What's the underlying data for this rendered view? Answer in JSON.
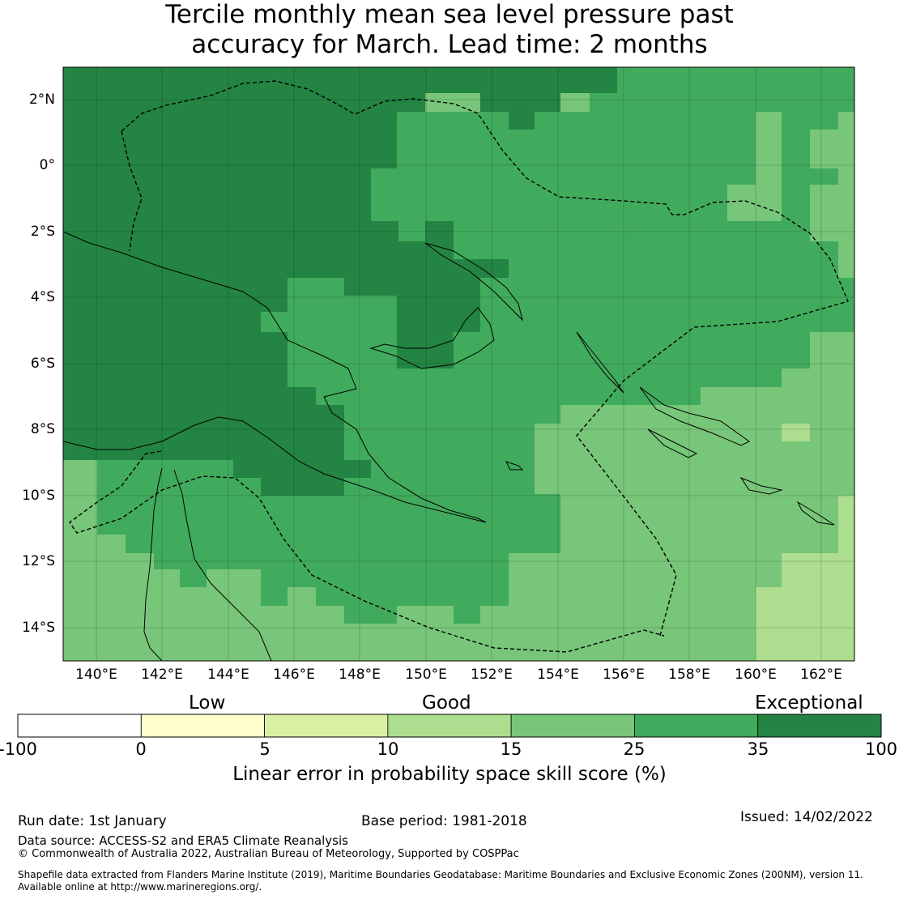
{
  "title": {
    "line1": "Tercile monthly mean sea level pressure past",
    "line2": "accuracy for March. Lead time: 2 months"
  },
  "map": {
    "lat_ticks": [
      "2°N",
      "0°",
      "2°S",
      "4°S",
      "6°S",
      "8°S",
      "10°S",
      "12°S",
      "14°S"
    ],
    "lon_ticks": [
      "140°E",
      "142°E",
      "144°E",
      "146°E",
      "148°E",
      "150°E",
      "152°E",
      "154°E",
      "156°E",
      "158°E",
      "160°E",
      "162°E"
    ],
    "extent": {
      "lon_min": 139.0,
      "lon_max": 163.0,
      "lat_min": -15.0,
      "lat_max": 3.0
    }
  },
  "colorbar": {
    "categories": [
      "Low",
      "Good",
      "Exceptional"
    ],
    "ticks": [
      "-100",
      "0",
      "5",
      "10",
      "15",
      "25",
      "35",
      "100"
    ],
    "bins": [
      {
        "from": -100,
        "to": 0,
        "color": "#ffffff"
      },
      {
        "from": 0,
        "to": 5,
        "color": "#ffffcc"
      },
      {
        "from": 5,
        "to": 10,
        "color": "#d9f0a3"
      },
      {
        "from": 10,
        "to": 15,
        "color": "#addd8e"
      },
      {
        "from": 15,
        "to": 25,
        "color": "#78c679"
      },
      {
        "from": 25,
        "to": 35,
        "color": "#41ab5d"
      },
      {
        "from": 35,
        "to": 100,
        "color": "#238443"
      }
    ],
    "label": "Linear error in probability space skill score (%)"
  },
  "footer": {
    "run_date": "Run date: 1st January",
    "base_period": "Base period: 1981-2018",
    "issued": "Issued: 14/02/2022",
    "data_source": "Data source: ACCESS-S2 and ERA5 Climate Reanalysis",
    "copyright": "© Commonwealth of Australia 2022, Australian Bureau of Meteorology, Supported by COSPPac",
    "shapefile1": "Shapefile data extracted from Flanders Marine Institute (2019), Maritime Boundaries Geodatabase: Maritime Boundaries and Exclusive Economic Zones (200NM), version 11.",
    "shapefile2": "Available online at http://www.marineregions.org/."
  }
}
